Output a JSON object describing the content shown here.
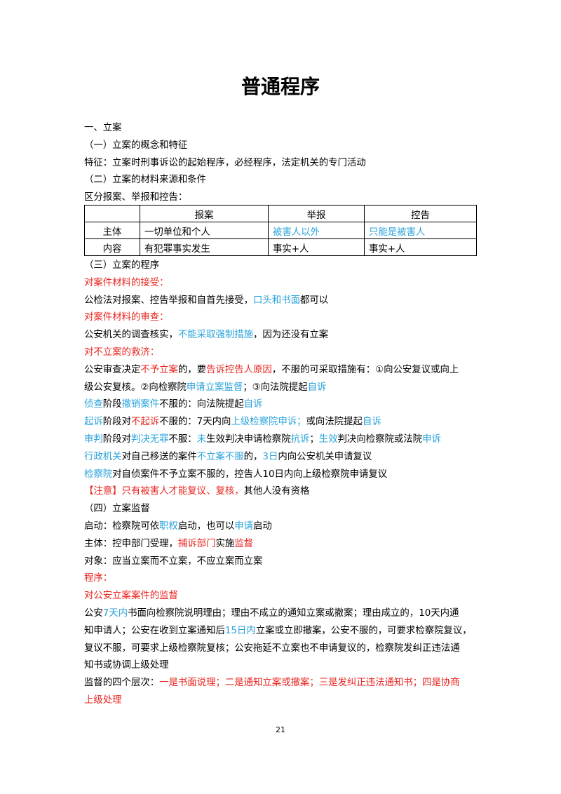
{
  "header": {
    "title": "普通程序"
  },
  "before": [
    [
      {
        "t": "一、立案",
        "c": "#000000"
      }
    ],
    [
      {
        "t": "（一）立案的概念和特征",
        "c": "#000000"
      }
    ],
    [
      {
        "t": "特征：立案时刑事诉讼的起始程序，必经程序，法定机关的专门活动",
        "c": "#000000"
      }
    ],
    [
      {
        "t": "（二）立案的材料来源和条件",
        "c": "#000000"
      }
    ],
    [
      {
        "t": "区分报案、举报和控告：",
        "c": "#000000"
      }
    ]
  ],
  "table": {
    "headers": [
      "报案",
      "举报",
      "控告"
    ],
    "rows": [
      {
        "label": "主体",
        "cells": [
          {
            "t": "一切单位和个人",
            "c": "#000000"
          },
          {
            "t": "被害人以外",
            "c": "#2aa3dc"
          },
          {
            "t": "只能是被害人",
            "c": "#2aa3dc"
          }
        ]
      },
      {
        "label": "内容",
        "cells": [
          {
            "t": "有犯罪事实发生",
            "c": "#000000"
          },
          {
            "t": "事实+人",
            "c": "#000000"
          },
          {
            "t": "事实+人",
            "c": "#000000"
          }
        ]
      }
    ]
  },
  "after": [
    [
      {
        "t": "（三）立案的程序",
        "c": "#000000"
      }
    ],
    [
      {
        "t": "对案件材料的接受：",
        "c": "#e8251f"
      }
    ],
    [
      {
        "t": "公检法对报案、控告举报和自首先接受，",
        "c": "#000000"
      },
      {
        "t": "口头和书面",
        "c": "#2aa3dc"
      },
      {
        "t": "都可以",
        "c": "#000000"
      }
    ],
    [
      {
        "t": "对案件材料的审查：",
        "c": "#e8251f"
      }
    ],
    [
      {
        "t": "公安机关的调查核实，",
        "c": "#000000"
      },
      {
        "t": "不能采取强制措施",
        "c": "#2aa3dc"
      },
      {
        "t": "，因为还没有立案",
        "c": "#000000"
      }
    ],
    [
      {
        "t": "对不立案的救济：",
        "c": "#e8251f"
      }
    ],
    [
      {
        "t": "公安审查决定",
        "c": "#000000"
      },
      {
        "t": "不予立案",
        "c": "#e8251f"
      },
      {
        "t": "的，要",
        "c": "#000000"
      },
      {
        "t": "告诉控告人原因",
        "c": "#e8251f"
      },
      {
        "t": "，不服的可采取措施有：①向公安复议或向上",
        "c": "#000000"
      }
    ],
    [
      {
        "t": "级公安复核。②向检察院",
        "c": "#000000"
      },
      {
        "t": "申请立案监督",
        "c": "#2aa3dc"
      },
      {
        "t": "；③向法院提起",
        "c": "#000000"
      },
      {
        "t": "自诉",
        "c": "#2aa3dc"
      }
    ],
    [
      {
        "t": "侦查",
        "c": "#2aa3dc"
      },
      {
        "t": "阶段",
        "c": "#000000"
      },
      {
        "t": "撤销案件",
        "c": "#2aa3dc"
      },
      {
        "t": "不服的：向法院提起",
        "c": "#000000"
      },
      {
        "t": "自诉",
        "c": "#2aa3dc"
      }
    ],
    [
      {
        "t": "起诉",
        "c": "#2aa3dc"
      },
      {
        "t": "阶段对",
        "c": "#000000"
      },
      {
        "t": "不起诉",
        "c": "#e8251f"
      },
      {
        "t": "不服的：7天内向",
        "c": "#000000"
      },
      {
        "t": "上级检察院申诉；",
        "c": "#2aa3dc"
      },
      {
        "t": "或向法院提起",
        "c": "#000000"
      },
      {
        "t": "自诉",
        "c": "#2aa3dc"
      }
    ],
    [
      {
        "t": "审判",
        "c": "#2aa3dc"
      },
      {
        "t": "阶段对",
        "c": "#000000"
      },
      {
        "t": "判决无罪",
        "c": "#2aa3dc"
      },
      {
        "t": "不服：",
        "c": "#000000"
      },
      {
        "t": "未",
        "c": "#2aa3dc"
      },
      {
        "t": "生效判决申请检察院",
        "c": "#000000"
      },
      {
        "t": "抗诉",
        "c": "#2aa3dc"
      },
      {
        "t": "；",
        "c": "#000000"
      },
      {
        "t": "生效",
        "c": "#2aa3dc"
      },
      {
        "t": "判决向检察院或法院",
        "c": "#000000"
      },
      {
        "t": "申诉",
        "c": "#2aa3dc"
      }
    ],
    [
      {
        "t": "行政机关",
        "c": "#2aa3dc"
      },
      {
        "t": "对自己移送的案件",
        "c": "#000000"
      },
      {
        "t": "不立案不服",
        "c": "#2aa3dc"
      },
      {
        "t": "的，",
        "c": "#000000"
      },
      {
        "t": "3日",
        "c": "#2aa3dc"
      },
      {
        "t": "内向公安机关申请复议",
        "c": "#000000"
      }
    ],
    [
      {
        "t": "检察院",
        "c": "#2aa3dc"
      },
      {
        "t": "对自侦案件不予立案不服的，控告人10日内向上级检察院申请复议",
        "c": "#000000"
      }
    ],
    [
      {
        "t": "【注意】只有被害人才能复议、复核，",
        "c": "#e8251f"
      },
      {
        "t": "其他人没有资格",
        "c": "#000000"
      }
    ],
    [
      {
        "t": "（四）立案监督",
        "c": "#000000"
      }
    ],
    [
      {
        "t": "启动：检察院可依",
        "c": "#000000"
      },
      {
        "t": "职权",
        "c": "#2aa3dc"
      },
      {
        "t": "启动，也可以",
        "c": "#000000"
      },
      {
        "t": "申请",
        "c": "#2aa3dc"
      },
      {
        "t": "启动",
        "c": "#000000"
      }
    ],
    [
      {
        "t": "主体：控申部门受理，",
        "c": "#000000"
      },
      {
        "t": "捕诉部门",
        "c": "#e8251f"
      },
      {
        "t": "实施",
        "c": "#000000"
      },
      {
        "t": "监督",
        "c": "#e8251f"
      }
    ],
    [
      {
        "t": "对象：应当立案而不立案，不应立案而立案",
        "c": "#000000"
      }
    ],
    [
      {
        "t": "程序：",
        "c": "#e8251f"
      }
    ],
    [
      {
        "t": "对公安立案案件的监督",
        "c": "#e8251f"
      }
    ],
    [
      {
        "t": "公安",
        "c": "#000000"
      },
      {
        "t": "7天内",
        "c": "#2aa3dc"
      },
      {
        "t": "书面向检察院说明理由；理由不成立的通知立案或撤案；理由成立的，10天内通",
        "c": "#000000"
      }
    ],
    [
      {
        "t": "知申请人；公安在收到立案通知后",
        "c": "#000000"
      },
      {
        "t": "15日内",
        "c": "#2aa3dc"
      },
      {
        "t": "立案或立即撤案，公安不服的，可要求检察院复议，",
        "c": "#000000"
      }
    ],
    [
      {
        "t": "复议不服，可要求上级检察院复核；公安拖延不立案也不申请复议的，检察院发纠正违法通",
        "c": "#000000"
      }
    ],
    [
      {
        "t": "知书或协调上级处理",
        "c": "#000000"
      }
    ],
    [
      {
        "t": "监督的四个层次：",
        "c": "#000000"
      },
      {
        "t": "一是书面说理；二是通知立案或撤案；三是发纠正违法通知书；四是协商",
        "c": "#e8251f"
      }
    ],
    [
      {
        "t": "上级处理",
        "c": "#e8251f"
      }
    ]
  ],
  "footer": {
    "page": "21"
  }
}
